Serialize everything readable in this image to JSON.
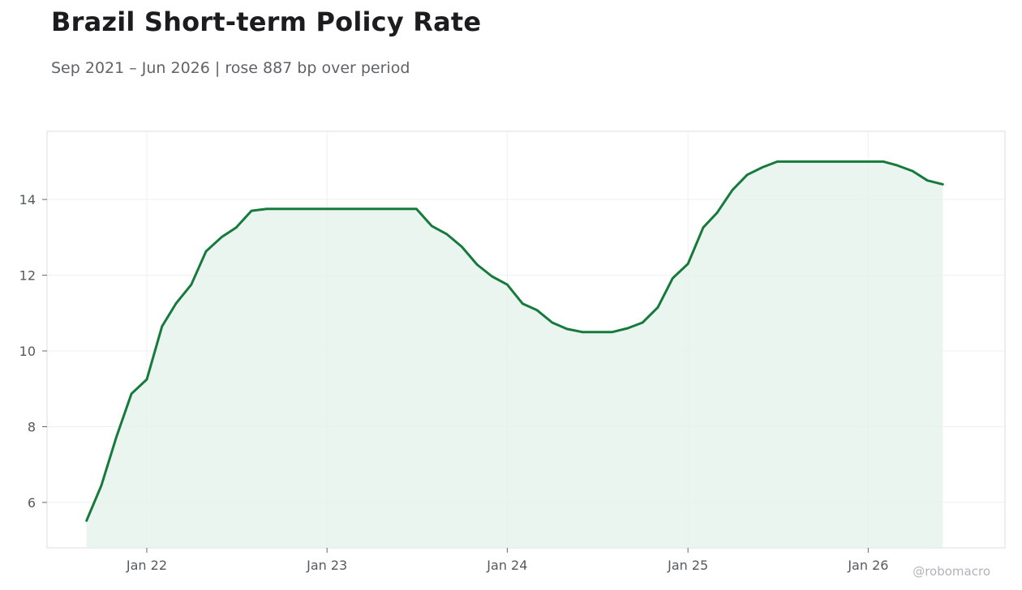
{
  "chart_data": {
    "type": "area",
    "title": "Brazil Short-term Policy Rate",
    "subtitle": "Sep 2021 – Jun 2026 | rose 887 bp over period",
    "xlabel": "",
    "ylabel": "",
    "x_ticks": [
      "Jan 22",
      "Jan 23",
      "Jan 24",
      "Jan 25",
      "Jan 26"
    ],
    "y_ticks": [
      6,
      8,
      10,
      12,
      14
    ],
    "ylim": [
      4.8,
      15.8
    ],
    "xlim": [
      "2021-06-13",
      "2026-10-05"
    ],
    "grid": true,
    "legend": "none",
    "line_color": "#167a3c",
    "fill_color": "#e6f2eb",
    "watermark": "@robomacro",
    "series": [
      {
        "x": [
          "2021-09",
          "2021-10",
          "2021-11",
          "2021-12",
          "2022-01",
          "2022-02",
          "2022-03",
          "2022-04",
          "2022-05",
          "2022-06",
          "2022-07",
          "2022-08",
          "2022-09",
          "2022-10",
          "2022-11",
          "2022-12",
          "2023-01",
          "2023-02",
          "2023-03",
          "2023-04",
          "2023-05",
          "2023-06",
          "2023-07",
          "2023-08",
          "2023-09",
          "2023-10",
          "2023-11",
          "2023-12",
          "2024-01",
          "2024-02",
          "2024-03",
          "2024-04",
          "2024-05",
          "2024-06",
          "2024-07",
          "2024-08",
          "2024-09",
          "2024-10",
          "2024-11",
          "2024-12",
          "2025-01",
          "2025-02",
          "2025-03",
          "2025-04",
          "2025-05",
          "2025-06",
          "2025-07",
          "2025-08",
          "2025-09",
          "2025-10",
          "2025-11",
          "2025-12",
          "2026-01",
          "2026-02",
          "2026-03",
          "2026-04",
          "2026-05",
          "2026-06"
        ],
        "values": [
          5.52,
          6.45,
          7.75,
          8.87,
          9.25,
          10.65,
          11.25,
          11.75,
          12.63,
          13.0,
          13.26,
          13.7,
          13.75,
          13.75,
          13.75,
          13.75,
          13.75,
          13.75,
          13.75,
          13.75,
          13.75,
          13.75,
          13.75,
          13.3,
          13.08,
          12.75,
          12.28,
          11.97,
          11.75,
          11.25,
          11.08,
          10.75,
          10.58,
          10.5,
          10.5,
          10.5,
          10.6,
          10.75,
          11.15,
          11.92,
          12.3,
          13.26,
          13.65,
          14.25,
          14.65,
          14.85,
          15.0,
          15.0,
          15.0,
          15.0,
          15.0,
          15.0,
          15.0,
          15.0,
          14.9,
          14.75,
          14.5,
          14.4
        ]
      }
    ]
  }
}
